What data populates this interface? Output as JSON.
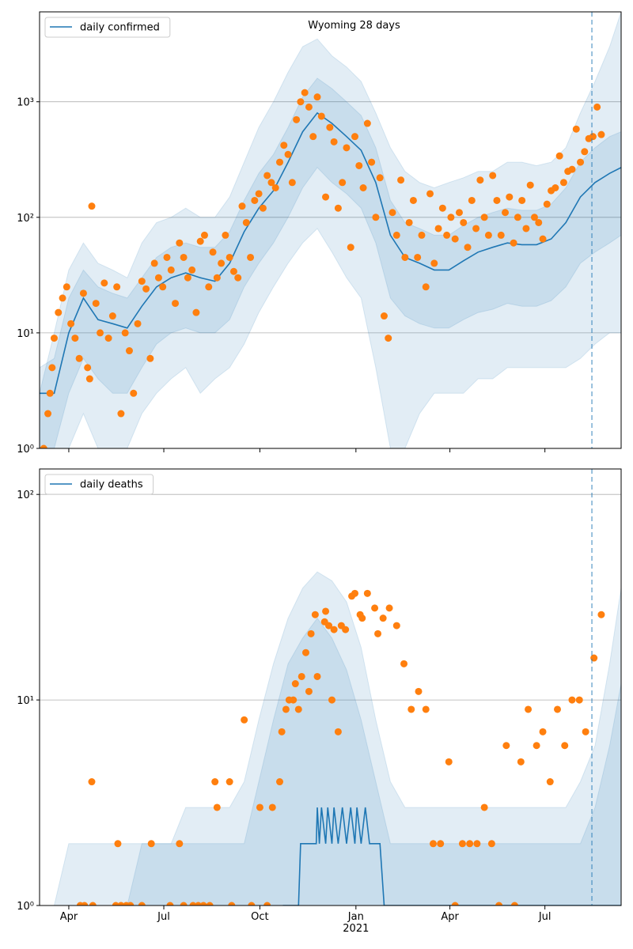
{
  "chart_data": [
    {
      "type": "line",
      "title": "Wyoming 28 days",
      "log_scale": true,
      "grid": true,
      "legend": "upper left",
      "xlim": [
        0,
        557
      ],
      "xticks": [
        28,
        119,
        211,
        303,
        393,
        484
      ],
      "ylim": [
        1,
        6000
      ],
      "yticks": [
        {
          "value": 1,
          "label": "10⁰"
        },
        {
          "value": 10,
          "label": "10¹"
        },
        {
          "value": 100,
          "label": "10²"
        },
        {
          "value": 1000,
          "label": "10³"
        }
      ],
      "vline": 529,
      "bands": {
        "color": "#1f77b4",
        "x": [
          0,
          14,
          28,
          42,
          56,
          70,
          84,
          98,
          112,
          126,
          140,
          154,
          168,
          182,
          196,
          210,
          224,
          238,
          252,
          266,
          280,
          294,
          308,
          322,
          336,
          350,
          364,
          378,
          392,
          406,
          420,
          434,
          448,
          462,
          476,
          490,
          504,
          518,
          532,
          546,
          557
        ],
        "items": [
          {
            "upper": [
              3,
              10,
              35,
              60,
              40,
              35,
              30,
              60,
              90,
              100,
              120,
              100,
              100,
              150,
              300,
              600,
              1000,
              1800,
              3000,
              3500,
              2500,
              2000,
              1500,
              800,
              400,
              250,
              200,
              180,
              200,
              220,
              250,
              250,
              300,
              300,
              280,
              300,
              400,
              800,
              1500,
              3000,
              6000
            ],
            "lower": [
              1,
              1,
              1,
              2,
              1,
              1,
              1,
              2,
              3,
              4,
              5,
              3,
              4,
              5,
              8,
              15,
              25,
              40,
              60,
              80,
              50,
              30,
              20,
              5,
              1,
              1,
              2,
              3,
              3,
              3,
              4,
              4,
              5,
              5,
              5,
              5,
              5,
              6,
              8,
              10,
              10
            ]
          },
          {
            "upper": [
              5,
              6,
              20,
              35,
              25,
              22,
              20,
              30,
              45,
              55,
              60,
              55,
              55,
              75,
              140,
              240,
              350,
              600,
              1100,
              1600,
              1300,
              1000,
              760,
              400,
              140,
              90,
              80,
              70,
              70,
              85,
              100,
              110,
              120,
              115,
              115,
              130,
              180,
              300,
              400,
              500,
              550
            ],
            "lower": [
              1,
              1,
              3,
              6,
              4,
              3,
              3,
              5,
              8,
              10,
              11,
              10,
              10,
              13,
              25,
              40,
              60,
              100,
              180,
              270,
              200,
              160,
              120,
              60,
              20,
              14,
              12,
              11,
              11,
              13,
              15,
              16,
              18,
              17,
              17,
              19,
              25,
              40,
              50,
              60,
              70
            ]
          }
        ]
      },
      "series": [
        {
          "name": "daily confirmed",
          "color": "#1f77b4",
          "x": [
            0,
            14,
            28,
            42,
            56,
            70,
            84,
            98,
            112,
            126,
            140,
            154,
            168,
            182,
            196,
            210,
            224,
            238,
            252,
            266,
            280,
            294,
            308,
            322,
            336,
            350,
            364,
            378,
            392,
            406,
            420,
            434,
            448,
            462,
            476,
            490,
            504,
            518,
            532,
            546,
            557
          ],
          "values": [
            3,
            3,
            10,
            20,
            13,
            12,
            11,
            17,
            25,
            30,
            33,
            30,
            28,
            40,
            75,
            120,
            170,
            300,
            550,
            800,
            650,
            500,
            380,
            200,
            70,
            45,
            40,
            35,
            35,
            42,
            50,
            55,
            60,
            58,
            58,
            65,
            90,
            150,
            200,
            240,
            270
          ]
        }
      ],
      "scatter": {
        "color": "#ff7f0e",
        "x": [
          4,
          8,
          10,
          12,
          14,
          18,
          22,
          26,
          30,
          34,
          38,
          42,
          46,
          48,
          50,
          54,
          58,
          62,
          66,
          70,
          74,
          78,
          82,
          86,
          90,
          94,
          98,
          102,
          106,
          110,
          114,
          118,
          122,
          126,
          130,
          134,
          138,
          142,
          146,
          150,
          154,
          158,
          162,
          166,
          170,
          174,
          178,
          182,
          186,
          190,
          194,
          198,
          202,
          206,
          210,
          214,
          218,
          222,
          226,
          230,
          234,
          238,
          242,
          246,
          250,
          254,
          258,
          262,
          266,
          270,
          274,
          278,
          282,
          286,
          290,
          294,
          298,
          302,
          306,
          310,
          314,
          318,
          322,
          326,
          330,
          334,
          338,
          342,
          346,
          350,
          354,
          358,
          362,
          366,
          370,
          374,
          378,
          382,
          386,
          390,
          394,
          398,
          402,
          406,
          410,
          414,
          418,
          422,
          426,
          430,
          434,
          438,
          442,
          446,
          450,
          454,
          458,
          462,
          466,
          470,
          474,
          478,
          482,
          486,
          490,
          494,
          498,
          502,
          506,
          510,
          514,
          518,
          522,
          526,
          530,
          534,
          538
        ],
        "values": [
          1,
          2,
          3,
          5,
          9,
          15,
          20,
          25,
          12,
          9,
          6,
          22,
          5,
          4,
          125,
          18,
          10,
          27,
          9,
          14,
          25,
          2,
          10,
          7,
          3,
          12,
          28,
          24,
          6,
          40,
          30,
          25,
          45,
          35,
          18,
          60,
          45,
          30,
          35,
          15,
          62,
          70,
          25,
          50,
          30,
          40,
          70,
          45,
          34,
          30,
          125,
          90,
          45,
          140,
          160,
          120,
          230,
          200,
          180,
          300,
          420,
          350,
          200,
          700,
          1000,
          1200,
          900,
          500,
          1100,
          750,
          150,
          600,
          450,
          120,
          200,
          400,
          55,
          500,
          280,
          180,
          650,
          300,
          100,
          220,
          14,
          9,
          110,
          70,
          210,
          45,
          90,
          140,
          45,
          70,
          25,
          160,
          40,
          80,
          120,
          70,
          100,
          65,
          110,
          90,
          55,
          140,
          80,
          210,
          100,
          70,
          230,
          140,
          70,
          110,
          150,
          60,
          100,
          140,
          80,
          190,
          100,
          90,
          65,
          130,
          170,
          180,
          340,
          200,
          250,
          260,
          580,
          300,
          370,
          480,
          500,
          900,
          520
        ]
      }
    },
    {
      "type": "line",
      "log_scale": true,
      "grid": true,
      "legend": "upper left",
      "xlim": [
        0,
        557
      ],
      "xticks": [
        {
          "value": 28,
          "label": "Apr"
        },
        {
          "value": 119,
          "label": "Jul"
        },
        {
          "value": 211,
          "label": "Oct"
        },
        {
          "value": 303,
          "label": "Jan\n2021"
        },
        {
          "value": 393,
          "label": "Apr"
        },
        {
          "value": 484,
          "label": "Jul"
        }
      ],
      "ylim": [
        1,
        133
      ],
      "yticks": [
        {
          "value": 1,
          "label": "10⁰"
        },
        {
          "value": 10,
          "label": "10¹"
        },
        {
          "value": 100,
          "label": "10²"
        }
      ],
      "vline": 529,
      "bands": {
        "color": "#1f77b4",
        "x": [
          0,
          14,
          28,
          42,
          56,
          70,
          84,
          98,
          112,
          126,
          140,
          154,
          168,
          182,
          196,
          210,
          224,
          238,
          252,
          266,
          280,
          294,
          308,
          322,
          336,
          350,
          364,
          378,
          392,
          406,
          420,
          434,
          448,
          462,
          476,
          490,
          504,
          518,
          532,
          546,
          557
        ],
        "items": [
          {
            "upper": [
              1,
              1,
              2,
              2,
              2,
              2,
              2,
              2,
              2,
              2,
              3,
              3,
              3,
              3,
              4,
              8,
              15,
              25,
              35,
              42,
              38,
              30,
              18,
              8,
              4,
              3,
              3,
              3,
              3,
              3,
              3,
              3,
              3,
              3,
              3,
              3,
              3,
              4,
              6,
              15,
              35
            ],
            "lower": [
              1,
              1,
              1,
              1,
              1,
              1,
              1,
              1,
              1,
              1,
              1,
              1,
              1,
              1,
              1,
              1,
              1,
              1,
              1,
              1,
              1,
              1,
              1,
              1,
              1,
              1,
              1,
              1,
              1,
              1,
              1,
              1,
              1,
              1,
              1,
              1,
              1,
              1,
              1,
              1,
              1
            ]
          },
          {
            "upper": [
              1,
              1,
              1,
              1,
              1,
              1,
              1,
              2,
              2,
              2,
              2,
              2,
              2,
              2,
              2,
              4,
              8,
              15,
              20,
              25,
              20,
              14,
              8,
              4,
              2,
              2,
              2,
              2,
              2,
              2,
              2,
              2,
              2,
              2,
              2,
              2,
              2,
              2,
              3,
              6,
              12
            ],
            "lower": [
              1,
              1,
              1,
              1,
              1,
              1,
              1,
              1,
              1,
              1,
              1,
              1,
              1,
              1,
              1,
              1,
              1,
              1,
              1,
              1,
              1,
              1,
              1,
              1,
              1,
              1,
              1,
              1,
              1,
              1,
              1,
              1,
              1,
              1,
              1,
              1,
              1,
              1,
              1,
              1,
              1
            ]
          }
        ]
      },
      "series": [
        {
          "name": "daily deaths",
          "color": "#1f77b4",
          "x": [
            233,
            248,
            250,
            265,
            266,
            268,
            270,
            274,
            276,
            280,
            282,
            286,
            290,
            294,
            298,
            302,
            304,
            308,
            312,
            316,
            322,
            326,
            330,
            340,
            557
          ],
          "values": [
            1,
            1,
            2,
            2,
            3,
            2,
            3,
            2,
            3,
            2,
            3,
            2,
            3,
            2,
            3,
            2,
            3,
            2,
            3,
            2,
            2,
            2,
            1,
            1,
            1
          ]
        }
      ],
      "scatter": {
        "color": "#ff7f0e",
        "x": [
          39,
          43,
          50,
          51,
          73,
          75,
          78,
          83,
          87,
          98,
          107,
          125,
          134,
          138,
          147,
          152,
          157,
          163,
          168,
          170,
          182,
          184,
          196,
          203,
          211,
          218,
          223,
          230,
          232,
          236,
          239,
          243,
          245,
          248,
          251,
          255,
          258,
          260,
          264,
          266,
          273,
          274,
          277,
          280,
          282,
          286,
          289,
          293,
          299,
          302,
          307,
          309,
          314,
          321,
          324,
          329,
          335,
          342,
          349,
          356,
          363,
          370,
          377,
          384,
          392,
          398,
          405,
          412,
          419,
          426,
          433,
          440,
          447,
          455,
          461,
          468,
          476,
          482,
          489,
          496,
          503,
          510,
          517,
          523,
          531,
          538
        ],
        "values": [
          1,
          1,
          4,
          1,
          1,
          2,
          1,
          1,
          1,
          1,
          2,
          1,
          2,
          1,
          1,
          1,
          1,
          1,
          4,
          3,
          4,
          1,
          8,
          1,
          3,
          1,
          3,
          4,
          7,
          9,
          10,
          10,
          12,
          9,
          13,
          17,
          11,
          21,
          26,
          13,
          24,
          27,
          23,
          10,
          22,
          7,
          23,
          22,
          32,
          33,
          26,
          25,
          33,
          28,
          21,
          25,
          28,
          23,
          15,
          9,
          11,
          9,
          2,
          2,
          5,
          1,
          2,
          2,
          2,
          3,
          2,
          1,
          6,
          1,
          5,
          9,
          6,
          7,
          4,
          9,
          6,
          10,
          10,
          7,
          16,
          26
        ]
      }
    }
  ]
}
